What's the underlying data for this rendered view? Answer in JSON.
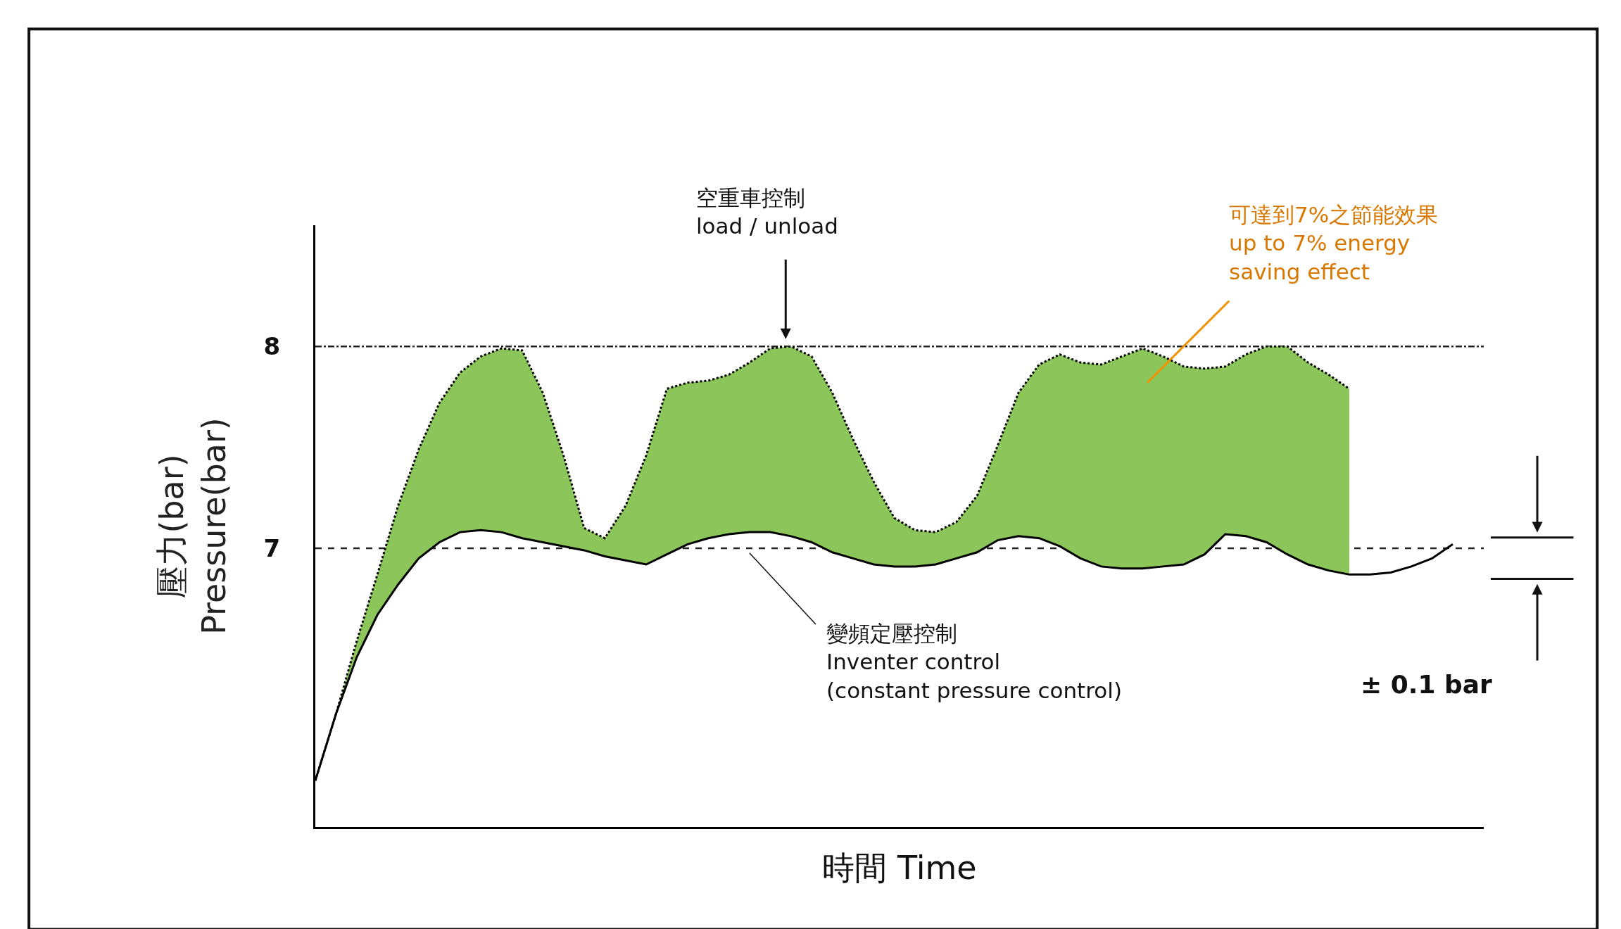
{
  "chart_data": {
    "type": "line",
    "xlabel": "時間 Time",
    "ylabel": "壓力(bar)\nPressure(bar)",
    "categories": [
      null,
      null,
      null,
      null,
      null,
      null,
      null,
      null,
      null,
      null,
      null,
      null,
      null,
      null,
      null,
      null,
      null,
      null,
      null,
      null,
      null,
      null,
      null,
      null,
      null,
      null,
      null,
      null,
      null,
      null,
      null,
      null,
      null,
      null,
      null,
      null,
      null,
      null,
      null,
      null,
      null,
      null,
      null,
      null,
      null,
      null,
      null,
      null,
      null,
      null,
      null,
      null,
      null,
      null,
      null,
      null,
      null
    ],
    "series": [
      {
        "color": "#000000",
        "line_style": "solid",
        "values": [
          5.85,
          6.18,
          6.46,
          6.67,
          6.82,
          6.95,
          7.03,
          7.08,
          7.09,
          7.08,
          7.05,
          7.03,
          7.01,
          6.99,
          6.96,
          6.94,
          6.92,
          6.97,
          7.02,
          7.05,
          7.07,
          7.08,
          7.08,
          7.06,
          7.03,
          6.98,
          6.95,
          6.92,
          6.91,
          6.91,
          6.92,
          6.95,
          6.98,
          7.04,
          7.06,
          7.05,
          7.01,
          6.95,
          6.91,
          6.9,
          6.9,
          6.91,
          6.92,
          6.97,
          7.07,
          7.06,
          7.03,
          6.97,
          6.92,
          6.89,
          6.87,
          6.87,
          6.88,
          6.91,
          6.95,
          7.02,
          null
        ]
      },
      {
        "type": "area",
        "color": "#8cc65a",
        "line_style": "dotted",
        "values": [
          5.85,
          6.18,
          6.54,
          6.87,
          7.21,
          7.49,
          7.72,
          7.87,
          7.95,
          7.99,
          7.98,
          7.77,
          7.46,
          7.1,
          7.05,
          7.21,
          7.46,
          7.79,
          7.82,
          7.83,
          7.86,
          7.92,
          7.99,
          8.0,
          7.95,
          7.77,
          7.54,
          7.33,
          7.15,
          7.09,
          7.08,
          7.13,
          7.26,
          7.51,
          7.77,
          7.91,
          7.96,
          7.92,
          7.91,
          7.95,
          7.99,
          7.95,
          7.9,
          7.89,
          7.9,
          7.96,
          8.0,
          8.0,
          7.92,
          7.86,
          7.79,
          null,
          null,
          null,
          null,
          null,
          null
        ]
      }
    ],
    "ylim": [
      5.62,
      8.6
    ],
    "yticks": [
      7,
      8
    ],
    "tick_labels": "y",
    "ref_lines": [
      {
        "axis": "y",
        "value": 8,
        "line_style": "dashdot"
      },
      {
        "axis": "y",
        "value": 7,
        "line_style": "dashed"
      }
    ],
    "annotations": [
      "空重車控制\nload / unload",
      "變頻定壓控制\nInventer control\n(constant pressure control)",
      "可達到7%之節能效果\nup to 7% energy\nsaving effect",
      "± 0.1 bar"
    ]
  }
}
